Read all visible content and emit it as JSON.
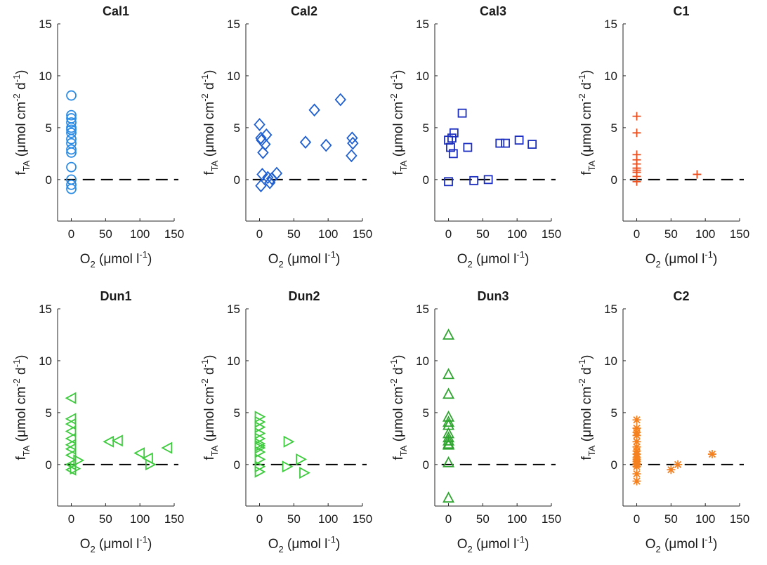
{
  "chart_data": [
    {
      "type": "scatter",
      "title": "Cal1",
      "marker": "circle",
      "color": "#2b8ce6",
      "xlabel": "O2 (μmol l−1)",
      "ylabel": "fTA (μmol cm−2 d−1)",
      "xlim": [
        -20,
        150
      ],
      "ylim": [
        -4,
        15
      ],
      "x": [
        0,
        0,
        0,
        0,
        0,
        0,
        0,
        0,
        0,
        0,
        0,
        0,
        0,
        0,
        0
      ],
      "y": [
        8.1,
        6.2,
        5.9,
        5.5,
        5.0,
        4.8,
        4.5,
        3.9,
        3.5,
        2.9,
        2.6,
        1.2,
        0.0,
        -0.5,
        -0.9
      ]
    },
    {
      "type": "scatter",
      "title": "Cal2",
      "marker": "diamond",
      "color": "#1f5fd1",
      "xlabel": "O2 (μmol l−1)",
      "ylabel": "fTA (μmol cm−2 d−1)",
      "xlim": [
        -20,
        150
      ],
      "ylim": [
        -4,
        15
      ],
      "x": [
        0,
        2,
        3,
        5,
        8,
        10,
        4,
        2,
        12,
        15,
        18,
        25,
        67,
        80,
        97,
        118,
        135,
        136,
        134
      ],
      "y": [
        5.3,
        4.0,
        3.8,
        2.6,
        3.4,
        4.3,
        0.5,
        -0.6,
        0.2,
        -0.3,
        0.1,
        0.6,
        3.6,
        6.7,
        3.3,
        7.7,
        4.0,
        3.5,
        2.3
      ]
    },
    {
      "type": "scatter",
      "title": "Cal3",
      "marker": "square",
      "color": "#1c2fbe",
      "xlabel": "O2 (μmol l−1)",
      "ylabel": "fTA (μmol cm−2 d−1)",
      "xlim": [
        -20,
        150
      ],
      "ylim": [
        -4,
        15
      ],
      "x": [
        0,
        0,
        3,
        5,
        7,
        8,
        20,
        28,
        37,
        58,
        75,
        83,
        103,
        122
      ],
      "y": [
        -0.2,
        3.8,
        3.1,
        4.0,
        2.5,
        4.5,
        6.4,
        3.1,
        -0.1,
        0.0,
        3.5,
        3.5,
        3.8,
        3.4
      ]
    },
    {
      "type": "scatter",
      "title": "C1",
      "marker": "plus",
      "color": "#ee4d1c",
      "xlabel": "O2 (μmol l−1)",
      "ylabel": "fTA (μmol cm−2 d−1)",
      "xlim": [
        -20,
        150
      ],
      "ylim": [
        -4,
        15
      ],
      "x": [
        0,
        0,
        0,
        0,
        0,
        0,
        0,
        0,
        0,
        0,
        88
      ],
      "y": [
        6.1,
        4.5,
        2.4,
        1.9,
        1.5,
        1.1,
        0.9,
        0.7,
        0.3,
        -0.2,
        0.5
      ]
    },
    {
      "type": "scatter",
      "title": "Dun1",
      "marker": "triangle-left",
      "color": "#3ecb3e",
      "xlabel": "O2 (μmol l−1)",
      "ylabel": "fTA (μmol cm−2 d−1)",
      "xlim": [
        -20,
        150
      ],
      "ylim": [
        -4,
        15
      ],
      "x": [
        0,
        0,
        0,
        0,
        0,
        0,
        0,
        0,
        0,
        0,
        55,
        68,
        100,
        112,
        140
      ],
      "y": [
        6.4,
        4.4,
        3.9,
        3.2,
        2.5,
        1.9,
        1.5,
        0.9,
        0.0,
        -0.5,
        2.2,
        2.3,
        1.1,
        0.6,
        1.6
      ],
      "secondary": {
        "marker": "triangle-right",
        "x": [
          10,
          5,
          115
        ],
        "y": [
          0.4,
          -0.4,
          0.0
        ]
      }
    },
    {
      "type": "scatter",
      "title": "Dun2",
      "marker": "triangle-right",
      "color": "#3ecb3e",
      "xlabel": "O2 (μmol l−1)",
      "ylabel": "fTA (μmol cm−2 d−1)",
      "xlim": [
        -20,
        150
      ],
      "ylim": [
        -4,
        15
      ],
      "x": [
        0,
        0,
        0,
        0,
        0,
        0,
        0,
        0,
        0,
        0,
        0,
        0,
        42,
        40,
        60,
        65
      ],
      "y": [
        4.6,
        4.1,
        3.6,
        3.0,
        2.5,
        2.0,
        1.8,
        1.6,
        1.2,
        0.5,
        -0.2,
        -0.7,
        2.2,
        -0.2,
        0.5,
        -0.8
      ]
    },
    {
      "type": "scatter",
      "title": "Dun3",
      "marker": "triangle-up",
      "color": "#2ea52e",
      "xlabel": "O2 (μmol l−1)",
      "ylabel": "fTA (μmol cm−2 d−1)",
      "xlim": [
        -20,
        150
      ],
      "ylim": [
        -4,
        15
      ],
      "x": [
        0,
        0,
        0,
        0,
        0,
        0,
        0,
        0,
        0,
        0,
        0,
        0,
        0
      ],
      "y": [
        12.5,
        8.7,
        6.8,
        4.6,
        4.1,
        3.8,
        3.0,
        2.6,
        2.3,
        2.0,
        1.9,
        0.2,
        -3.2
      ]
    },
    {
      "type": "scatter",
      "title": "C2",
      "marker": "asterisk",
      "color": "#f5801f",
      "xlabel": "O2 (μmol l−1)",
      "ylabel": "fTA (μmol cm−2 d−1)",
      "xlim": [
        -20,
        150
      ],
      "ylim": [
        -4,
        15
      ],
      "x": [
        0,
        0,
        0,
        0,
        0,
        0,
        0,
        0,
        0,
        0,
        0,
        0,
        0,
        0,
        0,
        0,
        50,
        60,
        110
      ],
      "y": [
        4.3,
        3.5,
        3.1,
        2.8,
        2.2,
        1.7,
        1.3,
        1.0,
        0.7,
        0.5,
        0.3,
        0.0,
        -0.2,
        -0.9,
        -1.6,
        0.1,
        -0.5,
        0.0,
        1.0
      ]
    }
  ],
  "axis_labels": {
    "y_f": "f",
    "y_sub": "TA",
    "y_mid": " (μmol cm",
    "y_exp1": "-2",
    "y_d": " d",
    "y_exp2": "-1",
    "y_end": ")",
    "x_o": "O",
    "x_sub": "2",
    "x_mid": " (μmol l",
    "x_exp": "-1",
    "x_end": ")"
  },
  "yticks": [
    0,
    5,
    10,
    15
  ],
  "xticks": [
    0,
    50,
    100,
    150
  ],
  "ytick_labels": [
    "0",
    "5",
    "10",
    "15"
  ],
  "xtick_labels": [
    "0",
    "50",
    "100",
    "150"
  ],
  "reference_line": {
    "y": 0,
    "style": "dashed",
    "color": "#000000"
  }
}
